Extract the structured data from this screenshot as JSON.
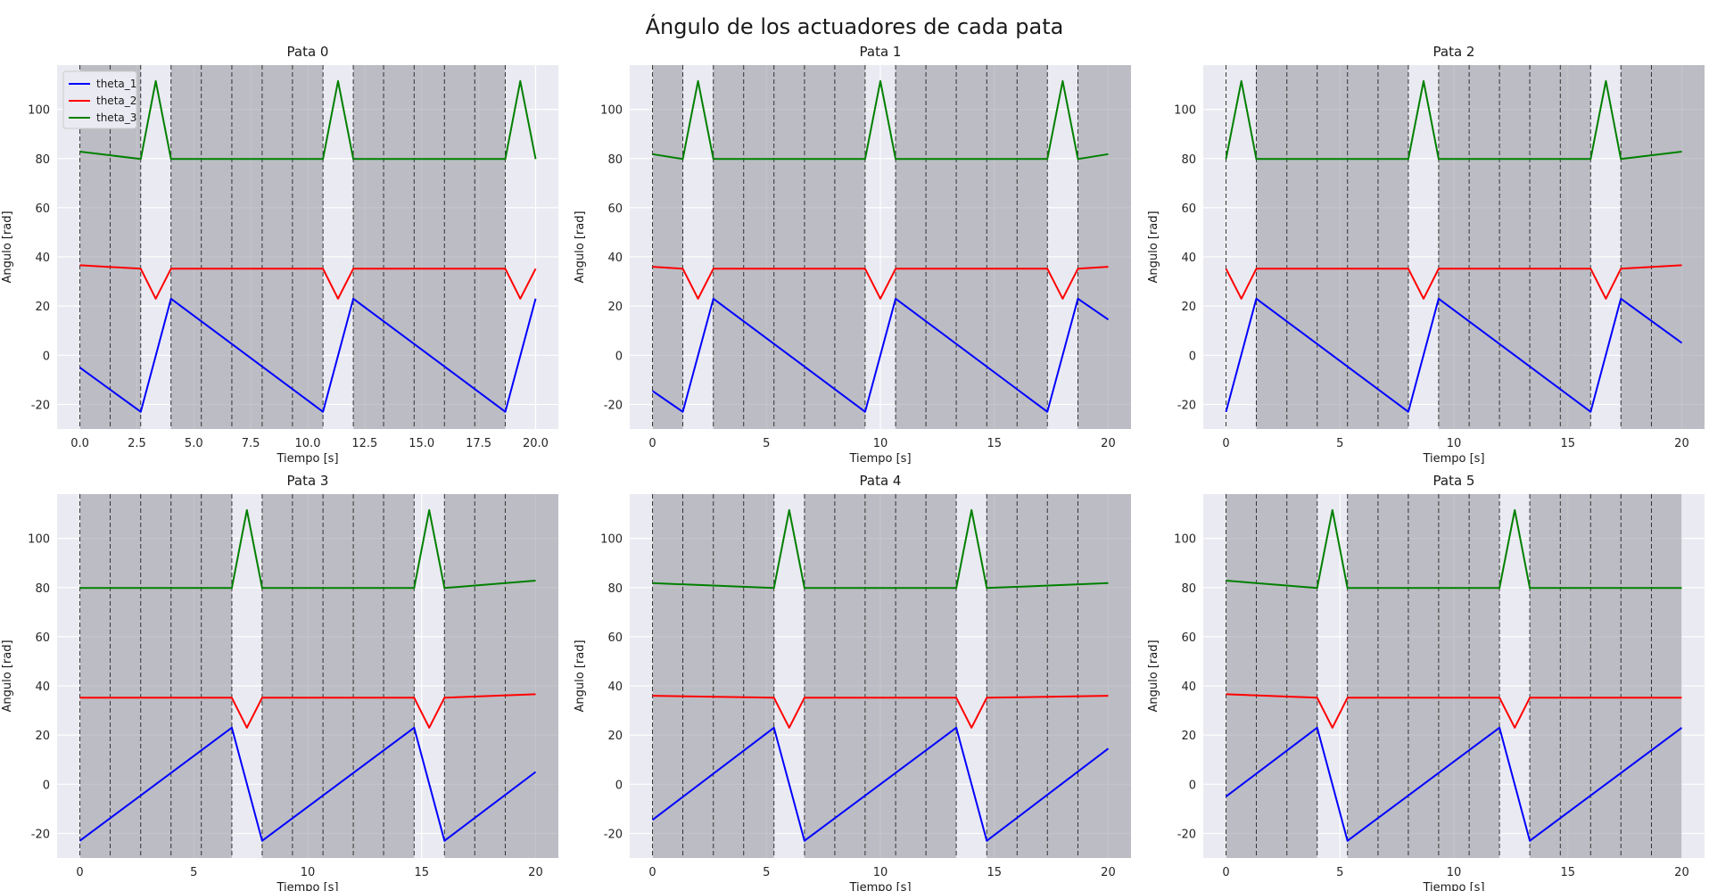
{
  "figure": {
    "suptitle": "Ángulo de los actuadores de cada pata"
  },
  "colors": {
    "axes_bg": "#eaeaf2",
    "grid": "#ffffff",
    "shade": "#a0a0a8",
    "theta_1": "#0000ff",
    "theta_2": "#ff0000",
    "theta_3": "#008000"
  },
  "chart_data": [
    {
      "type": "line",
      "title": "Pata 0",
      "xlabel": "Tiempo [s]",
      "ylabel": "Angulo [rad]",
      "xlim": [
        -1.0,
        21.0
      ],
      "ylim": [
        -30,
        118
      ],
      "xticks": [
        0.0,
        2.5,
        5.0,
        7.5,
        10.0,
        12.5,
        15.0,
        17.5,
        20.0
      ],
      "xtick_labels": [
        "0.0",
        "2.5",
        "5.0",
        "7.5",
        "10.0",
        "12.5",
        "15.0",
        "17.5",
        "20.0"
      ],
      "yticks": [
        -20,
        0,
        20,
        40,
        60,
        80,
        100
      ],
      "grid": true,
      "legend": {
        "position": "top-left",
        "entries": [
          "theta_1",
          "theta_2",
          "theta_3"
        ]
      },
      "swing_start": 2.67,
      "period": 8,
      "shade_end": 18.67,
      "t_start": 0,
      "t_end": 20,
      "vlines": [
        0,
        1.33,
        2.67,
        4,
        5.33,
        6.67,
        8,
        9.33,
        10.67,
        12,
        13.33,
        14.67,
        16,
        17.33,
        18.67
      ],
      "series": [
        {
          "name": "theta_1",
          "values": [
            [
              0,
              -5
            ],
            [
              2.67,
              -23
            ],
            [
              4,
              23
            ],
            [
              10.67,
              -23
            ],
            [
              12,
              23
            ],
            [
              18.67,
              -23
            ],
            [
              20,
              23
            ]
          ]
        },
        {
          "name": "theta_2",
          "values": [
            [
              0,
              36.6
            ],
            [
              2.67,
              35.2
            ],
            [
              3.33,
              23
            ],
            [
              4,
              35.2
            ],
            [
              10.67,
              35.2
            ],
            [
              11.33,
              23
            ],
            [
              12,
              35.2
            ],
            [
              18.67,
              35.2
            ],
            [
              19.33,
              23
            ],
            [
              20,
              35.2
            ]
          ]
        },
        {
          "name": "theta_3",
          "values": [
            [
              0,
              82.8
            ],
            [
              2.67,
              79.8
            ],
            [
              3.33,
              111.5
            ],
            [
              4,
              79.8
            ],
            [
              10.67,
              79.8
            ],
            [
              11.33,
              111.5
            ],
            [
              12,
              79.8
            ],
            [
              18.67,
              79.8
            ],
            [
              19.33,
              111.5
            ],
            [
              20,
              79.8
            ]
          ]
        }
      ]
    },
    {
      "type": "line",
      "title": "Pata 1",
      "xlabel": "Tiempo [s]",
      "ylabel": "Angulo [rad]",
      "xlim": [
        -1.0,
        21.0
      ],
      "ylim": [
        -30,
        118
      ],
      "xticks": [
        0,
        5,
        10,
        15,
        20
      ],
      "xtick_labels": [
        "0",
        "5",
        "10",
        "15",
        "20"
      ],
      "yticks": [
        -20,
        0,
        20,
        40,
        60,
        80,
        100
      ],
      "grid": true,
      "swing_start": 1.33,
      "period": 8,
      "shade_end": 21,
      "t_start": 0,
      "t_end": 20,
      "vlines": [
        0,
        1.33,
        2.67,
        4,
        5.33,
        6.67,
        8,
        9.33,
        10.67,
        12,
        13.33,
        14.67,
        16,
        17.33,
        18.67
      ],
      "series": [
        {
          "name": "theta_1",
          "values": [
            [
              0,
              -14.5
            ],
            [
              1.33,
              -23
            ],
            [
              2.67,
              23
            ],
            [
              9.33,
              -23
            ],
            [
              10.67,
              23
            ],
            [
              17.33,
              -23
            ],
            [
              18.67,
              23
            ],
            [
              20,
              14.5
            ]
          ]
        },
        {
          "name": "theta_2",
          "values": [
            [
              0,
              36.0
            ],
            [
              1.33,
              35.2
            ],
            [
              2,
              23
            ],
            [
              2.67,
              35.2
            ],
            [
              9.33,
              35.2
            ],
            [
              10,
              23
            ],
            [
              10.67,
              35.2
            ],
            [
              17.33,
              35.2
            ],
            [
              18,
              23
            ],
            [
              18.67,
              35.2
            ],
            [
              20,
              36.0
            ]
          ]
        },
        {
          "name": "theta_3",
          "values": [
            [
              0,
              81.8
            ],
            [
              1.33,
              79.8
            ],
            [
              2,
              111.5
            ],
            [
              2.67,
              79.8
            ],
            [
              9.33,
              79.8
            ],
            [
              10,
              111.5
            ],
            [
              10.67,
              79.8
            ],
            [
              17.33,
              79.8
            ],
            [
              18,
              111.5
            ],
            [
              18.67,
              79.8
            ],
            [
              20,
              81.8
            ]
          ]
        }
      ]
    },
    {
      "type": "line",
      "title": "Pata 2",
      "xlabel": "Tiempo [s]",
      "ylabel": "Angulo [rad]",
      "xlim": [
        -1.0,
        21.0
      ],
      "ylim": [
        -30,
        118
      ],
      "xticks": [
        0,
        5,
        10,
        15,
        20
      ],
      "xtick_labels": [
        "0",
        "5",
        "10",
        "15",
        "20"
      ],
      "yticks": [
        -20,
        0,
        20,
        40,
        60,
        80,
        100
      ],
      "grid": true,
      "swing_start": 0,
      "period": 8,
      "shade_end": 21,
      "t_start": 0,
      "t_end": 20,
      "vlines": [
        0,
        1.33,
        2.67,
        4,
        5.33,
        6.67,
        8,
        9.33,
        10.67,
        12,
        13.33,
        14.67,
        16,
        17.33,
        18.67
      ],
      "series": [
        {
          "name": "theta_1",
          "values": [
            [
              0,
              -23
            ],
            [
              1.33,
              23
            ],
            [
              8,
              -23
            ],
            [
              9.33,
              23
            ],
            [
              16,
              -23
            ],
            [
              17.33,
              23
            ],
            [
              20,
              5
            ]
          ]
        },
        {
          "name": "theta_2",
          "values": [
            [
              0,
              35.2
            ],
            [
              0.67,
              23
            ],
            [
              1.33,
              35.2
            ],
            [
              8,
              35.2
            ],
            [
              8.67,
              23
            ],
            [
              9.33,
              35.2
            ],
            [
              16,
              35.2
            ],
            [
              16.67,
              23
            ],
            [
              17.33,
              35.2
            ],
            [
              20,
              36.6
            ]
          ]
        },
        {
          "name": "theta_3",
          "values": [
            [
              0,
              79.8
            ],
            [
              0.67,
              111.5
            ],
            [
              1.33,
              79.8
            ],
            [
              8,
              79.8
            ],
            [
              8.67,
              111.5
            ],
            [
              9.33,
              79.8
            ],
            [
              16,
              79.8
            ],
            [
              16.67,
              111.5
            ],
            [
              17.33,
              79.8
            ],
            [
              20,
              82.8
            ]
          ]
        }
      ]
    },
    {
      "type": "line",
      "title": "Pata 3",
      "xlabel": "Tiempo [s]",
      "ylabel": "Angulo [rad]",
      "xlim": [
        -1.0,
        21.0
      ],
      "ylim": [
        -30,
        118
      ],
      "xticks": [
        0,
        5,
        10,
        15,
        20
      ],
      "xtick_labels": [
        "0",
        "5",
        "10",
        "15",
        "20"
      ],
      "yticks": [
        -20,
        0,
        20,
        40,
        60,
        80,
        100
      ],
      "grid": true,
      "swing_start": 6.67,
      "period": 8,
      "shade_end": 21,
      "t_start": 0,
      "t_end": 20,
      "vlines": [
        0,
        1.33,
        2.67,
        4,
        5.33,
        6.67,
        8,
        9.33,
        10.67,
        12,
        13.33,
        14.67,
        16,
        17.33,
        18.67
      ],
      "series": [
        {
          "name": "theta_1",
          "values": [
            [
              0,
              -23
            ],
            [
              6.67,
              23
            ],
            [
              8,
              -23
            ],
            [
              14.67,
              23
            ],
            [
              16,
              -23
            ],
            [
              20,
              5
            ]
          ]
        },
        {
          "name": "theta_2",
          "values": [
            [
              0,
              35.2
            ],
            [
              6.67,
              35.2
            ],
            [
              7.33,
              23
            ],
            [
              8,
              35.2
            ],
            [
              14.67,
              35.2
            ],
            [
              15.33,
              23
            ],
            [
              16,
              35.2
            ],
            [
              20,
              36.6
            ]
          ]
        },
        {
          "name": "theta_3",
          "values": [
            [
              0,
              79.8
            ],
            [
              6.67,
              79.8
            ],
            [
              7.33,
              111.5
            ],
            [
              8,
              79.8
            ],
            [
              14.67,
              79.8
            ],
            [
              15.33,
              111.5
            ],
            [
              16,
              79.8
            ],
            [
              20,
              82.8
            ]
          ]
        }
      ]
    },
    {
      "type": "line",
      "title": "Pata 4",
      "xlabel": "Tiempo [s]",
      "ylabel": "Angulo [rad]",
      "xlim": [
        -1.0,
        21.0
      ],
      "ylim": [
        -30,
        118
      ],
      "xticks": [
        0,
        5,
        10,
        15,
        20
      ],
      "xtick_labels": [
        "0",
        "5",
        "10",
        "15",
        "20"
      ],
      "yticks": [
        -20,
        0,
        20,
        40,
        60,
        80,
        100
      ],
      "grid": true,
      "swing_start": 5.33,
      "period": 8,
      "shade_end": 21,
      "t_start": 0,
      "t_end": 20,
      "vlines": [
        0,
        1.33,
        2.67,
        4,
        5.33,
        6.67,
        8,
        9.33,
        10.67,
        12,
        13.33,
        14.67,
        16,
        17.33,
        18.67
      ],
      "series": [
        {
          "name": "theta_1",
          "values": [
            [
              0,
              -14.5
            ],
            [
              5.33,
              23
            ],
            [
              6.67,
              -23
            ],
            [
              13.33,
              23
            ],
            [
              14.67,
              -23
            ],
            [
              20,
              14.5
            ]
          ]
        },
        {
          "name": "theta_2",
          "values": [
            [
              0,
              36.0
            ],
            [
              5.33,
              35.2
            ],
            [
              6,
              23
            ],
            [
              6.67,
              35.2
            ],
            [
              13.33,
              35.2
            ],
            [
              14,
              23
            ],
            [
              14.67,
              35.2
            ],
            [
              20,
              36.0
            ]
          ]
        },
        {
          "name": "theta_3",
          "values": [
            [
              0,
              81.8
            ],
            [
              5.33,
              79.8
            ],
            [
              6,
              111.5
            ],
            [
              6.67,
              79.8
            ],
            [
              13.33,
              79.8
            ],
            [
              14,
              111.5
            ],
            [
              14.67,
              79.8
            ],
            [
              20,
              81.8
            ]
          ]
        }
      ]
    },
    {
      "type": "line",
      "title": "Pata 5",
      "xlabel": "Tiempo [s]",
      "ylabel": "Angulo [rad]",
      "xlim": [
        -1.0,
        21.0
      ],
      "ylim": [
        -30,
        118
      ],
      "xticks": [
        0,
        5,
        10,
        15,
        20
      ],
      "xtick_labels": [
        "0",
        "5",
        "10",
        "15",
        "20"
      ],
      "yticks": [
        -20,
        0,
        20,
        40,
        60,
        80,
        100
      ],
      "grid": true,
      "swing_start": 4,
      "period": 8,
      "shade_end": 21,
      "t_start": 0,
      "t_end": 20,
      "vlines": [
        0,
        1.33,
        2.67,
        4,
        5.33,
        6.67,
        8,
        9.33,
        10.67,
        12,
        13.33,
        14.67,
        16,
        17.33,
        18.67
      ],
      "series": [
        {
          "name": "theta_1",
          "values": [
            [
              0,
              -5
            ],
            [
              4,
              23
            ],
            [
              5.33,
              -23
            ],
            [
              12,
              23
            ],
            [
              13.33,
              -23
            ],
            [
              20,
              23
            ]
          ]
        },
        {
          "name": "theta_2",
          "values": [
            [
              0,
              36.6
            ],
            [
              4,
              35.2
            ],
            [
              4.67,
              23
            ],
            [
              5.33,
              35.2
            ],
            [
              12,
              35.2
            ],
            [
              12.67,
              23
            ],
            [
              13.33,
              35.2
            ],
            [
              20,
              35.2
            ]
          ]
        },
        {
          "name": "theta_3",
          "values": [
            [
              0,
              82.8
            ],
            [
              4,
              79.8
            ],
            [
              4.67,
              111.5
            ],
            [
              5.33,
              79.8
            ],
            [
              12,
              79.8
            ],
            [
              12.67,
              111.5
            ],
            [
              13.33,
              79.8
            ],
            [
              20,
              79.8
            ]
          ]
        }
      ]
    }
  ]
}
